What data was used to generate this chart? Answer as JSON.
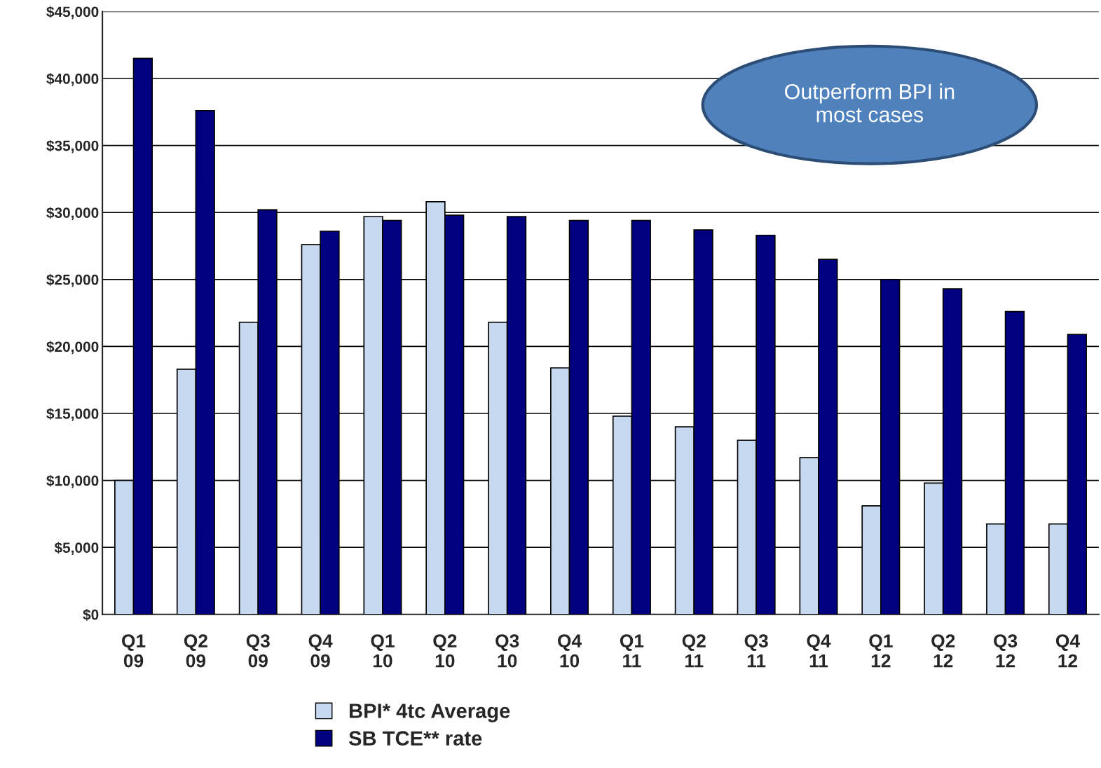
{
  "chart_data": {
    "type": "bar",
    "categories": [
      "Q1\n09",
      "Q2\n09",
      "Q3\n09",
      "Q4\n09",
      "Q1\n10",
      "Q2\n10",
      "Q3\n10",
      "Q4\n10",
      "Q1\n11",
      "Q2\n11",
      "Q3\n11",
      "Q4\n11",
      "Q1\n12",
      "Q2\n12",
      "Q3\n12",
      "Q4\n12"
    ],
    "series": [
      {
        "name": "BPI* 4tc Average",
        "color": "#c6d9f1",
        "values": [
          10000,
          18300,
          21800,
          27600,
          29700,
          30800,
          21800,
          18400,
          14800,
          14000,
          13000,
          11700,
          8100,
          9800,
          6750,
          6750
        ]
      },
      {
        "name": "SB TCE** rate",
        "color": "#000080",
        "values": [
          41500,
          37600,
          30200,
          28600,
          29400,
          29800,
          29700,
          29400,
          29400,
          28700,
          28300,
          26500,
          25000,
          24300,
          22600,
          20900
        ]
      }
    ],
    "ylim": [
      0,
      45000
    ],
    "yticks": [
      {
        "value": 0,
        "label": "$0"
      },
      {
        "value": 5000,
        "label": "$5,000"
      },
      {
        "value": 10000,
        "label": "$10,000"
      },
      {
        "value": 15000,
        "label": "$15,000"
      },
      {
        "value": 20000,
        "label": "$20,000"
      },
      {
        "value": 25000,
        "label": "$25,000"
      },
      {
        "value": 30000,
        "label": "$30,000"
      },
      {
        "value": 35000,
        "label": "$35,000"
      },
      {
        "value": 40000,
        "label": "$40,000"
      },
      {
        "value": 45000,
        "label": "$45,000"
      }
    ],
    "grid": "y",
    "legend": "bottom",
    "annotations": [
      "Outperform BPI in\nmost cases"
    ]
  }
}
